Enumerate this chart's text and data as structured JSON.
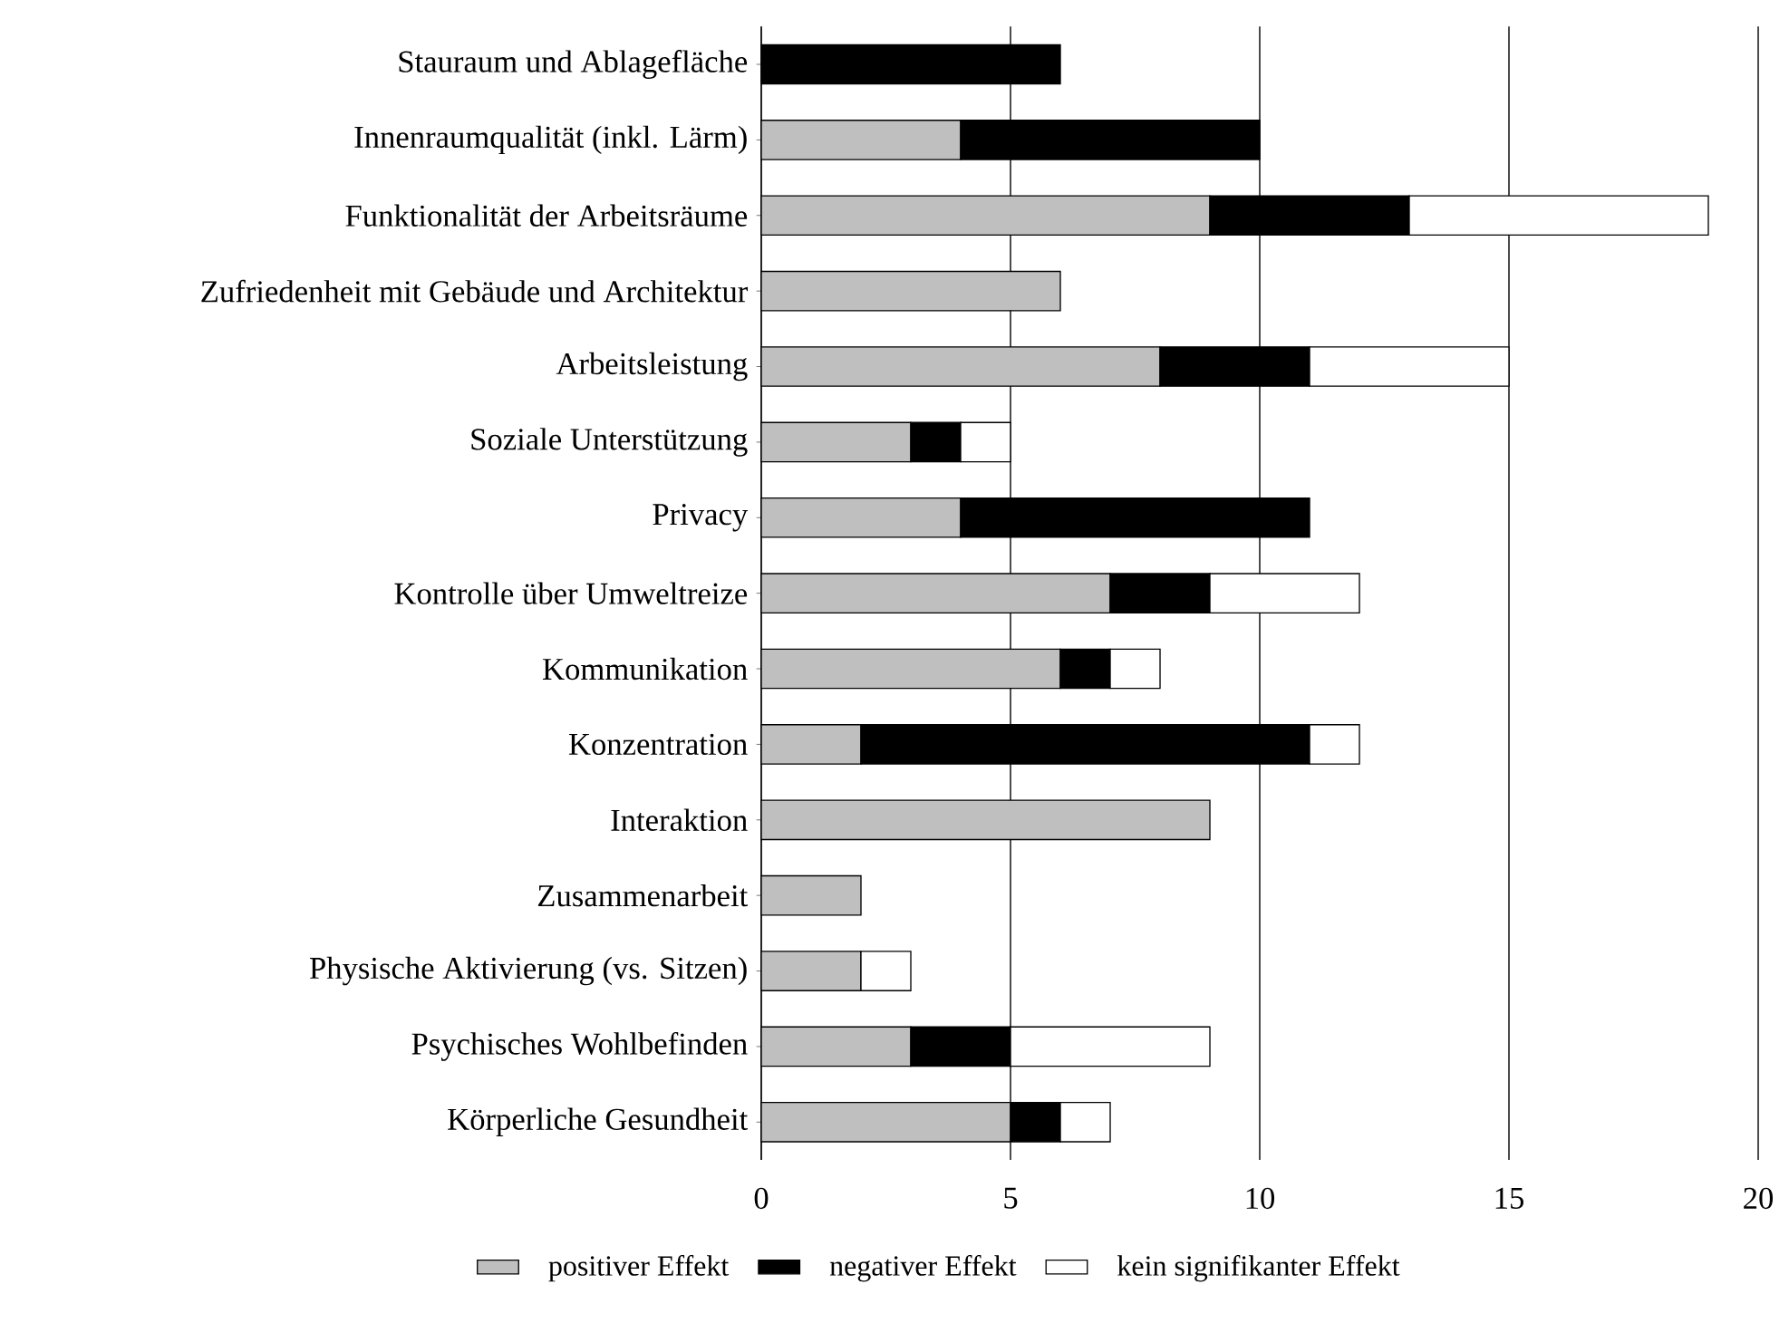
{
  "chart_data": {
    "type": "bar",
    "orientation": "horizontal",
    "stacked": true,
    "categories": [
      "Stauraum und Ablagefläche",
      "Innenraumqualität (inkl. Lärm)",
      "Funktionalität der Arbeitsräume",
      "Zufriedenheit mit Gebäude und Architektur",
      "Arbeitsleistung",
      "Soziale Unterstützung",
      "Privacy",
      "Kontrolle über Umweltreize",
      "Kommunikation",
      "Konzentration",
      "Interaktion",
      "Zusammenarbeit",
      "Physische Aktivierung (vs. Sitzen)",
      "Psychisches Wohlbefinden",
      "Körperliche Gesundheit"
    ],
    "series": [
      {
        "name": "positiver Effekt",
        "color": "#bfbfbf",
        "values": [
          0,
          4,
          9,
          6,
          8,
          3,
          4,
          7,
          6,
          2,
          9,
          2,
          2,
          3,
          5
        ]
      },
      {
        "name": "negativer Effekt",
        "color": "#000000",
        "values": [
          6,
          6,
          4,
          0,
          3,
          1,
          7,
          2,
          1,
          9,
          0,
          0,
          0,
          2,
          1
        ]
      },
      {
        "name": "kein signifikanter Effekt",
        "color": "#ffffff",
        "values": [
          0,
          0,
          6,
          0,
          4,
          1,
          0,
          3,
          1,
          1,
          0,
          0,
          1,
          4,
          1
        ]
      }
    ],
    "xlim": [
      0,
      20
    ],
    "xticks": [
      0,
      5,
      10,
      15,
      20
    ],
    "grid": "x",
    "legend": "bottom"
  }
}
